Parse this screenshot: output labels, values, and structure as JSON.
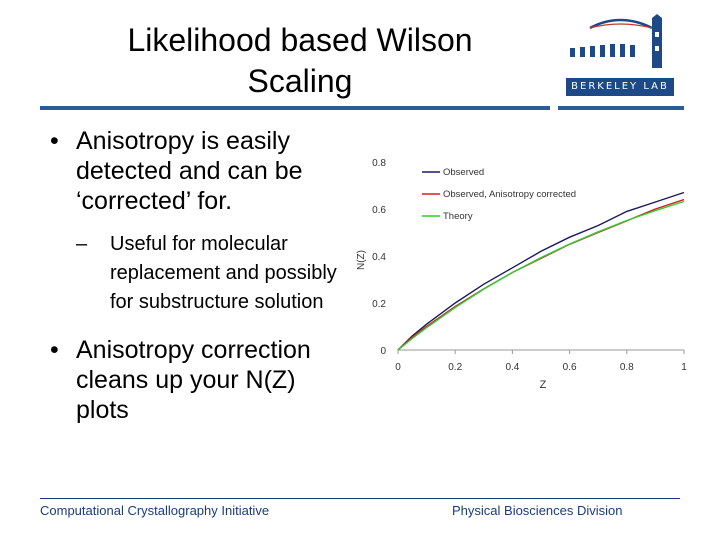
{
  "slide": {
    "title_lines": [
      "Likelihood based Wilson",
      "Scaling"
    ],
    "logo_text": "BERKELEY LAB",
    "bullets": {
      "b1": "Anisotropy is easily detected and can be ‘corrected’ for.",
      "b1_sub": "Useful for molecular replacement and possibly for substructure solution",
      "b2": "Anisotropy correction cleans up your N(Z) plots"
    },
    "bullet_glyph": "•",
    "sub_glyph": "–",
    "footer_left": "Computational Crystallography Initiative",
    "footer_right": "Physical Biosciences Division",
    "colors": {
      "rule": "#2a5d97",
      "footer": "#1a3d7a",
      "logo_band": "#1d4a86"
    }
  },
  "chart_data": {
    "type": "line",
    "xlabel": "Z",
    "ylabel": "N(Z)",
    "xlim": [
      0,
      1
    ],
    "ylim": [
      0,
      0.8
    ],
    "xticks": [
      "0",
      "0.2",
      "0.4",
      "0.6",
      "0.8",
      "1"
    ],
    "yticks": [
      "0",
      "0.2",
      "0.4",
      "0.6",
      "0.8"
    ],
    "legend_position": "top-right",
    "series": [
      {
        "name": "Observed",
        "color": "#1a1a5e",
        "x": [
          0,
          0.05,
          0.1,
          0.2,
          0.3,
          0.4,
          0.5,
          0.6,
          0.7,
          0.8,
          0.9,
          1.0
        ],
        "y": [
          0,
          0.06,
          0.11,
          0.2,
          0.28,
          0.35,
          0.42,
          0.48,
          0.53,
          0.59,
          0.63,
          0.67
        ]
      },
      {
        "name": "Observed, Anisotropy corrected",
        "color": "#d42020",
        "x": [
          0,
          0.05,
          0.1,
          0.2,
          0.3,
          0.4,
          0.5,
          0.6,
          0.7,
          0.8,
          0.9,
          1.0
        ],
        "y": [
          0,
          0.055,
          0.1,
          0.185,
          0.26,
          0.33,
          0.39,
          0.45,
          0.5,
          0.55,
          0.6,
          0.64
        ]
      },
      {
        "name": "Theory",
        "color": "#33cc33",
        "x": [
          0,
          0.05,
          0.1,
          0.2,
          0.3,
          0.4,
          0.5,
          0.6,
          0.7,
          0.8,
          0.9,
          1.0
        ],
        "y": [
          0,
          0.049,
          0.095,
          0.181,
          0.259,
          0.33,
          0.393,
          0.451,
          0.503,
          0.551,
          0.593,
          0.632
        ]
      }
    ]
  }
}
